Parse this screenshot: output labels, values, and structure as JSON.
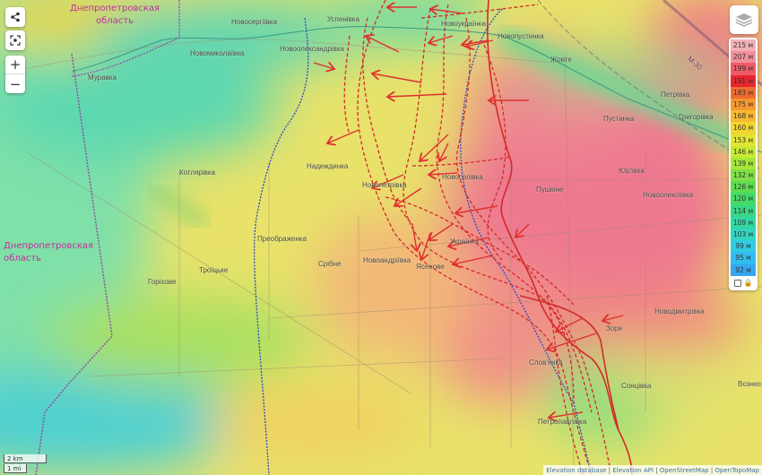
{
  "map": {
    "regions": [
      {
        "label": "Днепропетровская область",
        "line1": "Днепропетровская",
        "line2": "область"
      },
      {
        "label": "Днепропетровская область",
        "line1": "Днепропетровская",
        "line2": "область"
      }
    ],
    "places": [
      "Новосергіївка",
      "Успенівка",
      "Новоукраїнка",
      "Новопустинка",
      "Новомиколаївка",
      "Новоолександрівка",
      "Муравка",
      "Жовте",
      "Петрівка",
      "Пустинка",
      "Григорівка",
      "Надеждинка",
      "Котлярівка",
      "Новопетрівка",
      "Новоселівка",
      "Пушкіне",
      "Юр'ївка",
      "Новоолексіївка",
      "Преображенка",
      "Срібне",
      "Новоандріївка",
      "Ясенове",
      "Українка",
      "Троїцьке",
      "Горіхове",
      "Новодмитрівка",
      "Зоря",
      "Слов'янка",
      "Сонцівка",
      "Петропавлівка",
      "Вознесенка",
      "М-30"
    ],
    "colors": {
      "front_line": "#d42a2a",
      "arrow": "#e03030",
      "border": "#8a4aa0",
      "blue_line": "#3050c0"
    }
  },
  "controls": {
    "share_icon": "share-icon",
    "locate_icon": "locate-icon",
    "zoom_in": "+",
    "zoom_out": "−",
    "layers_icon": "layers-icon"
  },
  "legend": {
    "items": [
      {
        "label": "215 м",
        "color": "#f2b0b8"
      },
      {
        "label": "207 м",
        "color": "#f0909c"
      },
      {
        "label": "199 м",
        "color": "#ee5a66"
      },
      {
        "label": "191 м",
        "color": "#e8262e"
      },
      {
        "label": "183 м",
        "color": "#f06a30"
      },
      {
        "label": "175 м",
        "color": "#f5982e"
      },
      {
        "label": "168 м",
        "color": "#f8b830"
      },
      {
        "label": "160 м",
        "color": "#f2d630"
      },
      {
        "label": "153 м",
        "color": "#e2e630"
      },
      {
        "label": "146 м",
        "color": "#c8ea32"
      },
      {
        "label": "139 м",
        "color": "#a6e63a"
      },
      {
        "label": "132 м",
        "color": "#80e044"
      },
      {
        "label": "126 м",
        "color": "#60dc52"
      },
      {
        "label": "120 м",
        "color": "#44da66"
      },
      {
        "label": "114 м",
        "color": "#38d884"
      },
      {
        "label": "109 м",
        "color": "#32d8a2"
      },
      {
        "label": "103 м",
        "color": "#30d6c0"
      },
      {
        "label": "99 м",
        "color": "#30cce0"
      },
      {
        "label": "95 м",
        "color": "#32bcf0"
      },
      {
        "label": "92 м",
        "color": "#36a6ee"
      }
    ]
  },
  "scale": {
    "metric": "2 km",
    "imperial": "1 mi"
  },
  "attribution": [
    "Elevation database",
    "Elevation API",
    "OpenStreetMap",
    "OpenTopoMap"
  ]
}
